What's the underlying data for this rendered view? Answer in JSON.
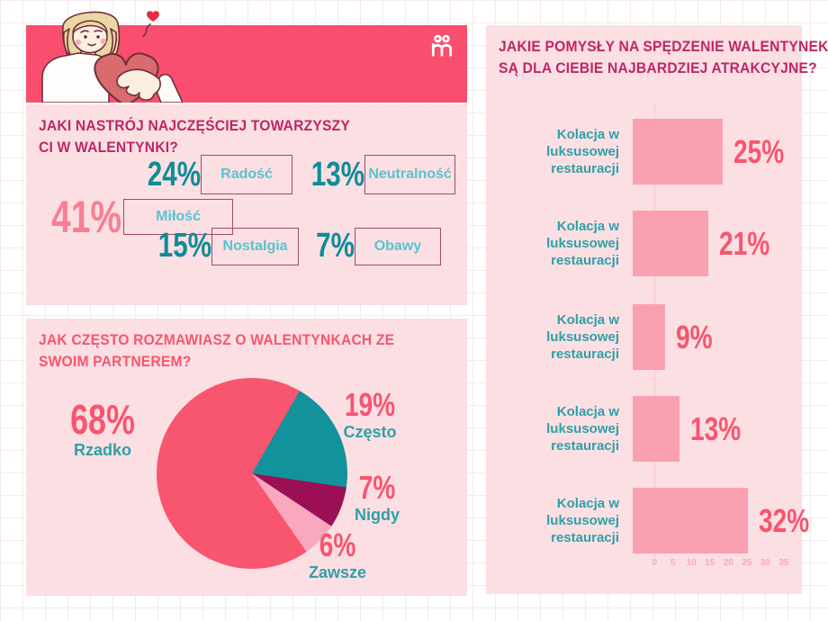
{
  "colors": {
    "banner": "#F94E6D",
    "panel_background": "#FBDFE3",
    "title_magenta": "#BE2765",
    "coral": "#F8556F",
    "salmon_accent": "#F97E93",
    "teal_dark": "#0F8C96",
    "teal_light": "#55C5CE",
    "teal_label": "#2FA0A8",
    "bar_pink": "#F9A0B1",
    "pie_maroon": "#9B1054",
    "pie_light_pink": "#F9A8BE",
    "box_border": "#A34A66"
  },
  "header": {
    "logo_icon": "gift-ribbon-m-logo"
  },
  "mood_section": {
    "title_line1": "JAKI NASTRÓJ NAJCZĘŚCIEJ TOWARZYSZY",
    "title_line2": "CI W WALENTYNKI?",
    "stats": [
      {
        "value": "41%",
        "label": "Miłość"
      },
      {
        "value": "24%",
        "label": "Radość"
      },
      {
        "value": "13%",
        "label": "Neutralność"
      },
      {
        "value": "15%",
        "label": "Nostalgia"
      },
      {
        "value": "7%",
        "label": "Obawy"
      }
    ]
  },
  "frequency_section": {
    "title_line1": "JAK CZĘSTO ROZMAWIASZ O WALENTYNKACH ZE",
    "title_line2": "SWOIM PARTNEREM?",
    "labels": [
      {
        "value": "68%",
        "label": "Rzadko"
      },
      {
        "value": "19%",
        "label": "Często"
      },
      {
        "value": "7%",
        "label": "Nigdy"
      },
      {
        "value": "6%",
        "label": "Zawsze"
      }
    ]
  },
  "ideas_section": {
    "title_line1": "JAKIE POMYSŁY NA SPĘDZENIE WALENTYNEK",
    "title_line2": "SĄ DLA CIEBIE NAJBARDZIEJ ATRAKCYJNE?",
    "rows": [
      {
        "label_line1": "Kolacja w luksusowej",
        "label_line2": "restauracji",
        "value": 25,
        "value_label": "25%"
      },
      {
        "label_line1": "Kolacja w luksusowej",
        "label_line2": "restauracji",
        "value": 21,
        "value_label": "21%"
      },
      {
        "label_line1": "Kolacja w luksusowej",
        "label_line2": "restauracji",
        "value": 9,
        "value_label": "9%"
      },
      {
        "label_line1": "Kolacja w luksusowej",
        "label_line2": "restauracji",
        "value": 13,
        "value_label": "13%"
      },
      {
        "label_line1": "Kolacja w luksusowej",
        "label_line2": "restauracji",
        "value": 32,
        "value_label": "32%"
      }
    ],
    "ticks": [
      "0",
      "5",
      "10",
      "15",
      "20",
      "25",
      "30",
      "35"
    ]
  },
  "chart_data": [
    {
      "type": "pie",
      "title": "JAK CZĘSTO ROZMAWIASZ O WALENTYNKACH ZE SWOIM PARTNEREM?",
      "labels": [
        "Rzadko",
        "Często",
        "Nigdy",
        "Zawsze"
      ],
      "values": [
        68,
        19,
        7,
        6
      ],
      "colors": [
        "#F8556F",
        "#12929B",
        "#9B1054",
        "#F9A8BE"
      ],
      "draw_order": [
        "Często",
        "Nigdy",
        "Zawsze",
        "Rzadko"
      ],
      "rotation_from_top_deg": 30,
      "legend_position": "around"
    },
    {
      "type": "bar",
      "orientation": "horizontal",
      "title": "JAKIE POMYSŁY NA SPĘDZENIE WALENTYNEK SĄ DLA CIEBIE NAJBARDZIEJ ATRAKCYJNE?",
      "categories": [
        "Kolacja w luksusowej restauracji",
        "Kolacja w luksusowej restauracji",
        "Kolacja w luksusowej restauracji",
        "Kolacja w luksusowej restauracji",
        "Kolacja w luksusowej restauracji"
      ],
      "values": [
        25,
        21,
        9,
        13,
        32
      ],
      "xlim": [
        0,
        35
      ],
      "xticks": [
        0,
        5,
        10,
        15,
        20,
        25,
        30,
        35
      ],
      "bar_color": "#F9A0B1",
      "grid": false
    },
    {
      "type": "table",
      "title": "JAKI NASTRÓJ NAJCZĘŚCIEJ TOWARZYSZY CI W WALENTYNKI?",
      "categories": [
        "Miłość",
        "Radość",
        "Neutralność",
        "Nostalgia",
        "Obawy"
      ],
      "values": [
        41,
        24,
        13,
        15,
        7
      ]
    }
  ]
}
